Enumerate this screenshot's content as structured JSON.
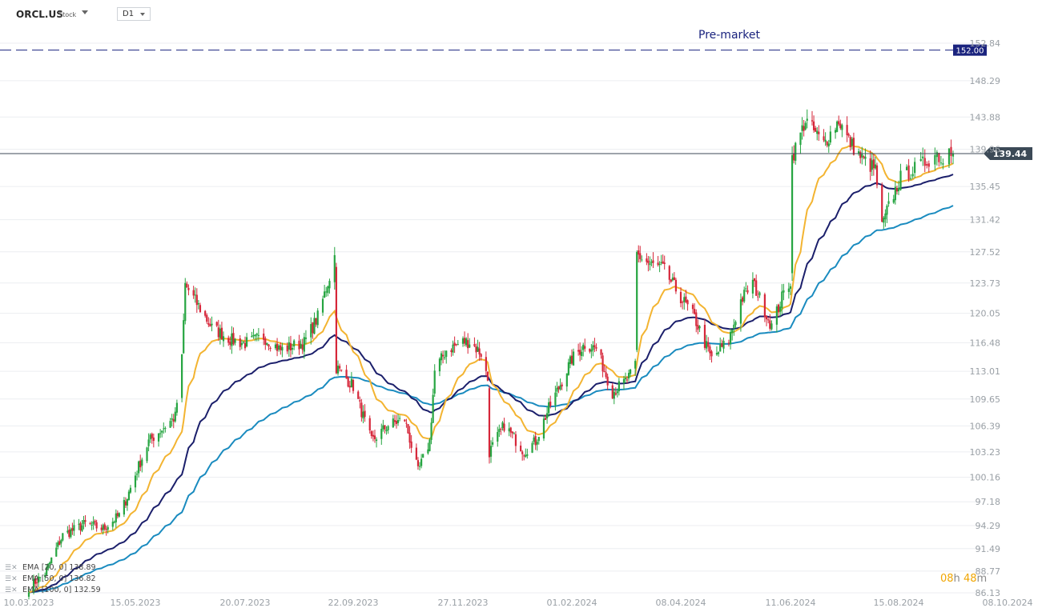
{
  "header": {
    "symbol": "ORCL.US",
    "type": "Stock",
    "timeframe": "D1"
  },
  "premarket_label": "Pre-market",
  "countdown": {
    "hours": "08",
    "h": "h",
    "minutes": "48",
    "m": "m"
  },
  "legend": [
    {
      "label": "EMA [20, 0] 138.89",
      "color": "#f3b431"
    },
    {
      "label": "EMA [50, 0] 136.82",
      "color": "#1b1f6b"
    },
    {
      "label": "EMA [100, 0] 132.59",
      "color": "#1a8bbf"
    }
  ],
  "chart_data": {
    "type": "candlestick",
    "y_ticks": [
      "152.84",
      "148.29",
      "143.88",
      "139.96",
      "135.45",
      "131.42",
      "127.52",
      "123.73",
      "120.05",
      "116.48",
      "113.01",
      "109.65",
      "106.39",
      "103.23",
      "100.16",
      "97.18",
      "94.29",
      "91.49",
      "88.77",
      "86.13"
    ],
    "y_tick_values": [
      152.84,
      148.29,
      143.88,
      139.96,
      135.45,
      131.42,
      127.52,
      123.73,
      120.05,
      116.48,
      113.01,
      109.65,
      106.39,
      103.23,
      100.16,
      97.18,
      94.29,
      91.49,
      88.77,
      86.13
    ],
    "x_ticks": [
      "10.03.2023",
      "15.05.2023",
      "20.07.2023",
      "22.09.2023",
      "27.11.2023",
      "01.02.2024",
      "08.04.2024",
      "11.06.2024",
      "15.08.2024",
      "08.10.2024"
    ],
    "x_tick_dates": [
      "2023-03-10",
      "2023-05-15",
      "2023-07-20",
      "2023-09-22",
      "2023-11-27",
      "2024-02-01",
      "2024-04-08",
      "2024-06-11",
      "2024-08-15",
      "2024-10-08"
    ],
    "last_price": "139.44",
    "last_price_value": 139.44,
    "premarket_price": "152.00",
    "premarket_price_value": 152.0,
    "colors": {
      "up": "#26a541",
      "down": "#d6273a",
      "last_line": "#3c4a57",
      "premarket": "#1a237e",
      "grid": "#eceef1"
    },
    "close_path": [
      [
        "2023-03-10",
        86.8
      ],
      [
        "2023-03-20",
        88.5
      ],
      [
        "2023-03-31",
        93.1
      ],
      [
        "2023-04-14",
        94.5
      ],
      [
        "2023-04-25",
        93.9
      ],
      [
        "2023-05-05",
        95.5
      ],
      [
        "2023-05-10",
        97.8
      ],
      [
        "2023-05-16",
        101.0
      ],
      [
        "2023-05-23",
        104.5
      ],
      [
        "2023-06-01",
        106.2
      ],
      [
        "2023-06-08",
        107.5
      ],
      [
        "2023-06-12",
        114.5
      ],
      [
        "2023-06-14",
        123.5
      ],
      [
        "2023-06-23",
        120.6
      ],
      [
        "2023-06-30",
        118.3
      ],
      [
        "2023-07-12",
        116.8
      ],
      [
        "2023-07-20",
        116.4
      ],
      [
        "2023-07-31",
        117.2
      ],
      [
        "2023-08-10",
        115.6
      ],
      [
        "2023-08-24",
        116.5
      ],
      [
        "2023-09-01",
        119.6
      ],
      [
        "2023-09-08",
        124.5
      ],
      [
        "2023-09-11",
        127.0
      ],
      [
        "2023-09-12",
        113.5
      ],
      [
        "2023-09-22",
        111.2
      ],
      [
        "2023-10-03",
        104.5
      ],
      [
        "2023-10-13",
        106.5
      ],
      [
        "2023-10-23",
        107.2
      ],
      [
        "2023-10-31",
        100.8
      ],
      [
        "2023-11-07",
        104.5
      ],
      [
        "2023-11-10",
        113.0
      ],
      [
        "2023-11-17",
        115.6
      ],
      [
        "2023-11-27",
        116.6
      ],
      [
        "2023-12-01",
        116.6
      ],
      [
        "2023-12-08",
        115.2
      ],
      [
        "2023-12-12",
        112.0
      ],
      [
        "2023-12-13",
        103.2
      ],
      [
        "2023-12-22",
        106.5
      ],
      [
        "2024-01-03",
        103.3
      ],
      [
        "2024-01-10",
        104.5
      ],
      [
        "2024-01-18",
        108.5
      ],
      [
        "2024-01-24",
        111.0
      ],
      [
        "2024-02-01",
        114.5
      ],
      [
        "2024-02-09",
        116.3
      ],
      [
        "2024-02-16",
        115.8
      ],
      [
        "2024-02-26",
        110.5
      ],
      [
        "2024-03-05",
        111.8
      ],
      [
        "2024-03-08",
        112.5
      ],
      [
        "2024-03-11",
        113.8
      ],
      [
        "2024-03-12",
        127.2
      ],
      [
        "2024-03-20",
        126.0
      ],
      [
        "2024-03-28",
        125.5
      ],
      [
        "2024-04-08",
        122.0
      ],
      [
        "2024-04-16",
        119.5
      ],
      [
        "2024-04-26",
        114.5
      ],
      [
        "2024-05-06",
        116.8
      ],
      [
        "2024-05-13",
        121.6
      ],
      [
        "2024-05-20",
        123.8
      ],
      [
        "2024-05-31",
        118.5
      ],
      [
        "2024-06-07",
        122.5
      ],
      [
        "2024-06-11",
        124.0
      ],
      [
        "2024-06-12",
        139.0
      ],
      [
        "2024-06-20",
        143.5
      ],
      [
        "2024-07-01",
        140.6
      ],
      [
        "2024-07-10",
        143.5
      ],
      [
        "2024-07-16",
        141.0
      ],
      [
        "2024-07-24",
        138.8
      ],
      [
        "2024-08-01",
        137.5
      ],
      [
        "2024-08-05",
        130.5
      ],
      [
        "2024-08-09",
        133.0
      ],
      [
        "2024-08-16",
        136.5
      ],
      [
        "2024-08-27",
        138.2
      ],
      [
        "2024-09-03",
        139.5
      ],
      [
        "2024-09-06",
        138.3
      ],
      [
        "2024-09-09",
        140.6
      ],
      [
        "2024-09-11",
        139.44
      ]
    ]
  }
}
